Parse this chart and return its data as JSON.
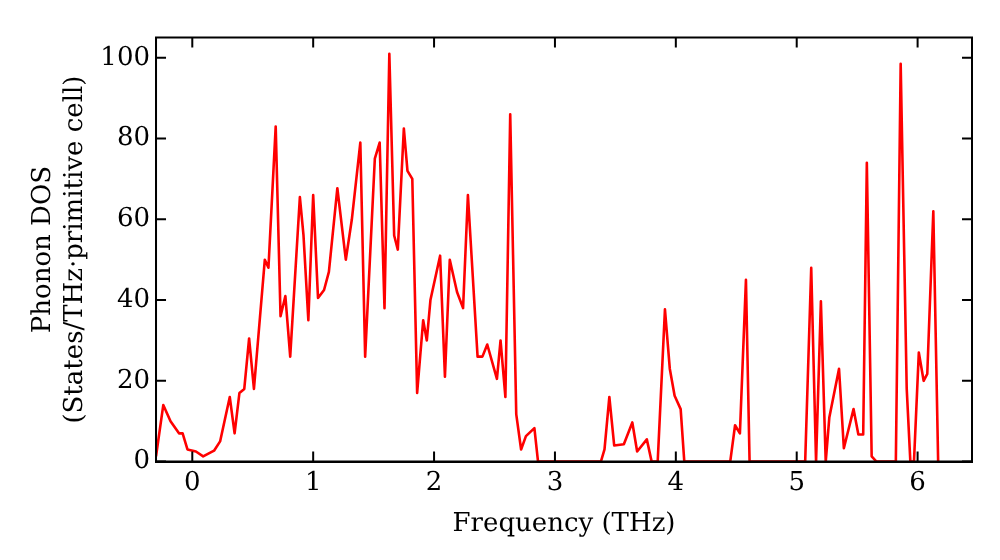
{
  "chart_data": {
    "type": "line",
    "xlabel": "Frequency (THz)",
    "ylabel": "Phonon DOS\n(States/THz·primitive cell)",
    "xlim": [
      -0.3,
      6.45
    ],
    "ylim": [
      0,
      105
    ],
    "xticks": [
      0,
      1,
      2,
      3,
      4,
      5,
      6
    ],
    "yticks": [
      0,
      20,
      40,
      60,
      80,
      100
    ],
    "grid": false,
    "legend": false,
    "marker": "none",
    "line_style": "solid",
    "series": [
      {
        "color": "#ff0000",
        "x": [
          -0.3,
          -0.24,
          -0.18,
          -0.11,
          -0.08,
          -0.04,
          0.03,
          0.09,
          0.18,
          0.23,
          0.31,
          0.35,
          0.39,
          0.43,
          0.47,
          0.51,
          0.6,
          0.63,
          0.69,
          0.73,
          0.77,
          0.81,
          0.89,
          0.92,
          0.96,
          1.0,
          1.04,
          1.09,
          1.13,
          1.2,
          1.27,
          1.32,
          1.39,
          1.43,
          1.51,
          1.55,
          1.59,
          1.63,
          1.67,
          1.7,
          1.75,
          1.78,
          1.82,
          1.86,
          1.91,
          1.94,
          1.97,
          2.05,
          2.09,
          2.13,
          2.19,
          2.24,
          2.28,
          2.34,
          2.36,
          2.4,
          2.44,
          2.52,
          2.55,
          2.59,
          2.63,
          2.68,
          2.72,
          2.76,
          2.83,
          2.86,
          3.38,
          3.41,
          3.45,
          3.49,
          3.57,
          3.64,
          3.68,
          3.76,
          3.8,
          3.85,
          3.91,
          3.95,
          3.99,
          4.04,
          4.07,
          4.45,
          4.49,
          4.53,
          4.58,
          4.61,
          5.07,
          5.12,
          5.16,
          5.2,
          5.24,
          5.27,
          5.35,
          5.39,
          5.47,
          5.51,
          5.55,
          5.58,
          5.62,
          5.66,
          5.82,
          5.86,
          5.91,
          5.94,
          5.97,
          6.01,
          6.05,
          6.08,
          6.13,
          6.17
        ],
        "values": [
          1.3,
          14,
          10,
          7,
          7,
          3,
          2.5,
          1.3,
          2.7,
          5,
          16,
          7,
          17,
          18,
          30.5,
          18,
          50,
          48,
          83,
          36,
          41,
          26,
          65.5,
          56,
          35,
          66,
          40.5,
          42.5,
          47,
          67.7,
          50,
          60,
          79,
          26,
          75,
          79,
          38,
          101,
          56,
          52.5,
          82.5,
          72,
          70,
          17,
          35,
          30,
          40,
          51,
          21,
          50,
          42,
          38,
          66,
          36,
          26,
          26,
          29,
          20.5,
          30,
          16,
          86,
          11.7,
          3,
          6.3,
          8.3,
          0,
          0,
          3,
          16,
          4,
          4.3,
          9.7,
          2.5,
          5.5,
          0,
          0,
          37.7,
          23,
          16.3,
          13,
          0,
          0,
          9,
          7,
          45,
          0,
          0,
          48,
          0,
          39.7,
          0,
          11,
          23,
          3.3,
          13,
          6.7,
          6.7,
          74,
          1.3,
          0,
          0,
          98.5,
          18,
          0,
          0,
          27,
          20,
          21.7,
          62,
          0
        ]
      }
    ]
  }
}
